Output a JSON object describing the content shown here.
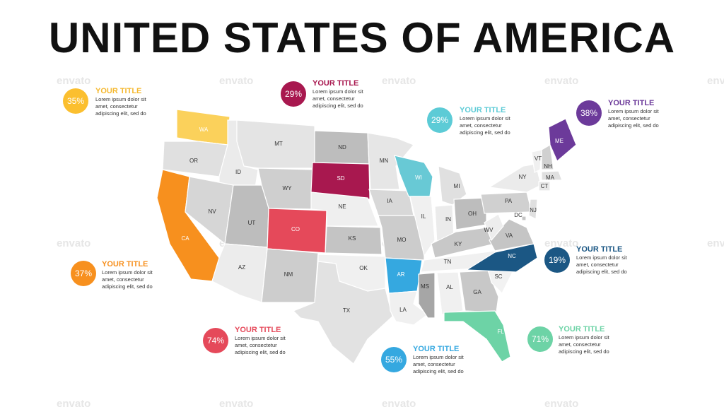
{
  "title": "UNITED STATES OF AMERICA",
  "watermark": "envato",
  "states": [
    "WA",
    "OR",
    "CA",
    "ID",
    "NV",
    "MT",
    "WY",
    "UT",
    "AZ",
    "CO",
    "NM",
    "ND",
    "SD",
    "NE",
    "KS",
    "OK",
    "TX",
    "MN",
    "IA",
    "MO",
    "AR",
    "LA",
    "WI",
    "IL",
    "MI",
    "IN",
    "OH",
    "KY",
    "TN",
    "MS",
    "AL",
    "GA",
    "FL",
    "SC",
    "NC",
    "VA",
    "WV",
    "PA",
    "NY",
    "VT",
    "NH",
    "ME",
    "MA",
    "CT",
    "NJ",
    "DC"
  ],
  "callouts": [
    {
      "percent": "35%",
      "title": "YOUR TITLE",
      "lines": [
        "Lorem ipsum dolor sit",
        "amet, consectetur",
        "adipiscing elit, sed do"
      ]
    },
    {
      "percent": "29%",
      "title": "YOUR TITLE",
      "lines": [
        "Lorem ipsum dolor sit",
        "amet, consectetur",
        "adipiscing elit, sed do"
      ]
    },
    {
      "percent": "29%",
      "title": "YOUR TITLE",
      "lines": [
        "Lorem ipsum dolor sit",
        "amet, consectetur",
        "adipiscing elit, sed do"
      ]
    },
    {
      "percent": "38%",
      "title": "YOUR TITLE",
      "lines": [
        "Lorem ipsum dolor sit",
        "amet, consectetur",
        "adipiscing elit, sed do"
      ]
    },
    {
      "percent": "19%",
      "title": "YOUR TITLE",
      "lines": [
        "Lorem ipsum dolor sit",
        "amet, consectetur",
        "adipiscing elit, sed do"
      ]
    },
    {
      "percent": "37%",
      "title": "YOUR TITLE",
      "lines": [
        "Lorem ipsum dolor sit",
        "amet, consectetur",
        "adipiscing elit, sed do"
      ]
    },
    {
      "percent": "74%",
      "title": "YOUR TITLE",
      "lines": [
        "Lorem ipsum dolor sit",
        "amet, consectetur",
        "adipiscing elit, sed do"
      ]
    },
    {
      "percent": "55%",
      "title": "YOUR TITLE",
      "lines": [
        "Lorem ipsum dolor sit",
        "amet, consectetur",
        "adipiscing elit, sed do"
      ]
    },
    {
      "percent": "71%",
      "title": "YOUR TITLE",
      "lines": [
        "Lorem ipsum dolor sit",
        "amet, consectetur",
        "adipiscing elit, sed do"
      ]
    }
  ]
}
